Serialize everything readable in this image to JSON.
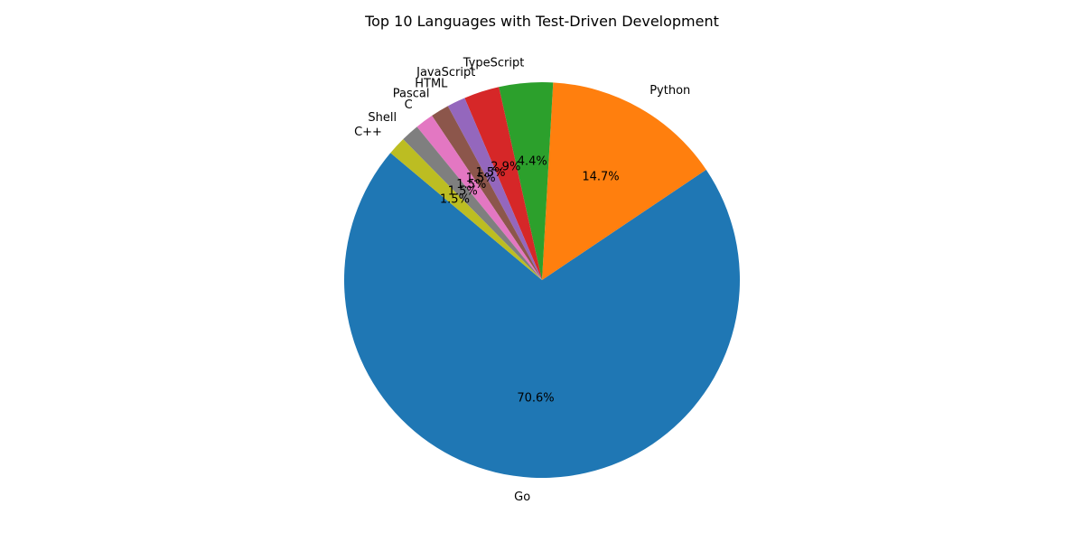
{
  "chart_data": {
    "type": "pie",
    "title": "Top 10 Languages with Test-Driven Development",
    "categories": [
      "Go",
      "Python",
      "TypeScript",
      "JavaScript",
      "HTML",
      "Pascal",
      "C",
      "Shell",
      "C++"
    ],
    "values": [
      70.6,
      14.7,
      4.4,
      2.9,
      1.5,
      1.5,
      1.5,
      1.5,
      1.5
    ],
    "percent_labels": [
      "70.6%",
      "14.7%",
      "4.4%",
      "2.9%",
      "1.5%",
      "1.5%",
      "1.5%",
      "1.5%",
      "1.5%"
    ],
    "colors": [
      "#1f77b4",
      "#ff7f0e",
      "#2ca02c",
      "#d62728",
      "#9467bd",
      "#8c564b",
      "#e377c2",
      "#7f7f7f",
      "#bcbd22"
    ],
    "start_angle_deg": 140,
    "legend": "none"
  }
}
